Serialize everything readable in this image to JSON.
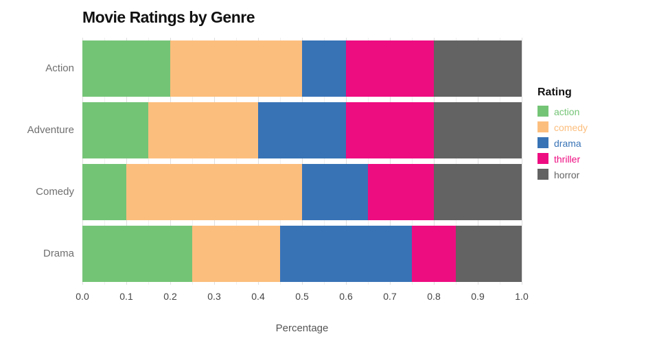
{
  "chart_data": {
    "type": "bar",
    "orientation": "horizontal-stacked",
    "title": "Movie Ratings by Genre",
    "xlabel": "Percentage",
    "categories": [
      "Action",
      "Adventure",
      "Comedy",
      "Drama"
    ],
    "series": [
      {
        "name": "action",
        "color": "#74c476",
        "values": [
          0.2,
          0.15,
          0.1,
          0.25
        ]
      },
      {
        "name": "comedy",
        "color": "#fcbe7d",
        "values": [
          0.3,
          0.25,
          0.4,
          0.2
        ]
      },
      {
        "name": "drama",
        "color": "#3873b6",
        "values": [
          0.1,
          0.2,
          0.15,
          0.3
        ]
      },
      {
        "name": "thriller",
        "color": "#ee0c81",
        "values": [
          0.2,
          0.2,
          0.15,
          0.1
        ]
      },
      {
        "name": "horror",
        "color": "#636363",
        "values": [
          0.2,
          0.2,
          0.2,
          0.15
        ]
      }
    ],
    "xlim": [
      0,
      1
    ],
    "xticks": [
      "0.0",
      "0.1",
      "0.2",
      "0.3",
      "0.4",
      "0.5",
      "0.6",
      "0.7",
      "0.8",
      "0.9",
      "1.0"
    ],
    "grid": "vertical",
    "legend": {
      "title": "Rating",
      "position": "right"
    }
  }
}
